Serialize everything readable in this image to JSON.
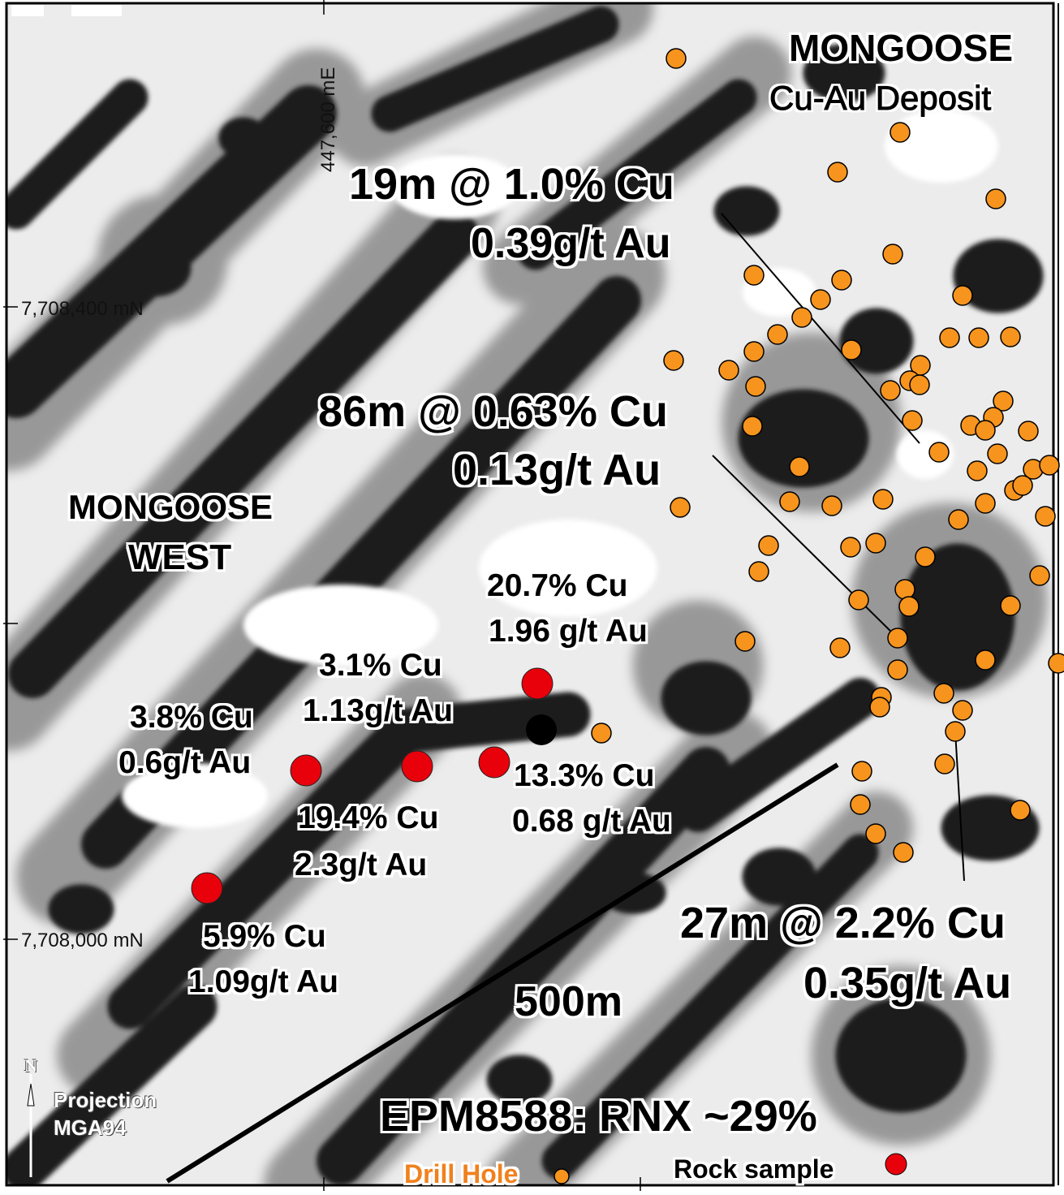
{
  "map": {
    "background_colors": {
      "dark": "#1a1a1a",
      "mid": "#8a8a8a",
      "light": "#ffffff"
    },
    "drill_hole_color": "#f7941d",
    "rock_sample_color": "#e8000b",
    "extra_sample_color": "#000000"
  },
  "labels": {
    "mongoose": "MONGOOSE",
    "mongoose_sub": "Cu-Au Deposit",
    "mongoose_west_1": "MONGOOSE",
    "mongoose_west_2": "WEST",
    "int1_l1": "19m @ 1.0% Cu",
    "int1_l2": "0.39g/t Au",
    "int2_l1": "86m @ 0.63% Cu",
    "int2_l2": "0.13g/t Au",
    "int3_l1": "27m @ 2.2% Cu",
    "int3_l2": "0.35g/t Au",
    "s1_l1": "20.7% Cu",
    "s1_l2": "1.96 g/t Au",
    "s2_l1": "3.1% Cu",
    "s2_l2": "1.13g/t Au",
    "s3_l1": "3.8% Cu",
    "s3_l2": "0.6g/t Au",
    "s4_l1": "13.3% Cu",
    "s4_l2": "0.68 g/t Au",
    "s5_l1": "19.4% Cu",
    "s5_l2": "2.3g/t Au",
    "s6_l1": "5.9% Cu",
    "s6_l2": "1.09g/t Au",
    "scale": "500m",
    "epm": "EPM8588: RNX ~29%",
    "north": "N",
    "projection_1": "Projection",
    "projection_2": "MGA94"
  },
  "coords": {
    "easting": "447,600 mE",
    "northing_top": "7,708,400 mN",
    "northing_bottom": "7,708,000 mN"
  },
  "legend": {
    "drill_hole": "Drill Hole",
    "rock_sample": "Rock sample"
  }
}
